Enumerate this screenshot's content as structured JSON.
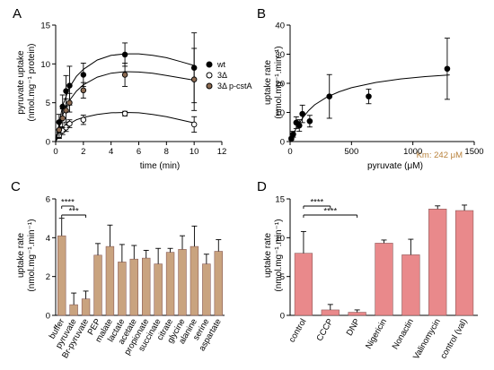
{
  "colors": {
    "black": "#000000",
    "brown": "#8c6b52",
    "tan": "#c9a37f",
    "salmon": "#e9898b",
    "red": "#d8343a",
    "grey": "#7f7f7f",
    "km_color": "#b8813a"
  },
  "chart_data": [
    {
      "panel": "A",
      "type": "scatter",
      "xlabel": "time (min)",
      "ylabel": "pyruvate uptake",
      "ylabel2": "(nmol.mg⁻¹ protein)",
      "xlim": [
        0,
        12
      ],
      "ylim": [
        0,
        15
      ],
      "xticks": [
        "0",
        "2",
        "4",
        "6",
        "8",
        "10",
        "12"
      ],
      "yticks": [
        "0",
        "5",
        "10",
        "15"
      ],
      "legend_position": "right",
      "series": [
        {
          "name": "wt",
          "marker": "filled-black",
          "x": [
            0.25,
            0.5,
            0.75,
            1,
            2,
            5,
            10
          ],
          "y": [
            2.5,
            4.5,
            6.5,
            7.2,
            8.6,
            11.2,
            9.5
          ],
          "err": [
            1.0,
            1.5,
            2.0,
            2.5,
            1.5,
            1.5,
            4.5
          ],
          "fit": [
            [
              0,
              0
            ],
            [
              0.5,
              4.6
            ],
            [
              1,
              7.0
            ],
            [
              1.5,
              8.4
            ],
            [
              2,
              9.3
            ],
            [
              3,
              10.5
            ],
            [
              4,
              11.1
            ],
            [
              5,
              11.3
            ],
            [
              6,
              11.3
            ],
            [
              7,
              11.1
            ],
            [
              8,
              10.8
            ],
            [
              9,
              10.3
            ],
            [
              10,
              9.8
            ]
          ]
        },
        {
          "name": "3Δ",
          "marker": "open",
          "x": [
            0.25,
            0.5,
            0.75,
            1,
            2,
            5,
            10
          ],
          "y": [
            0.8,
            1.4,
            1.8,
            2.3,
            2.8,
            3.6,
            2.2
          ],
          "err": [
            0.4,
            0.5,
            0.5,
            0.5,
            0.6,
            0.3,
            1.0
          ],
          "fit": [
            [
              0,
              0
            ],
            [
              0.5,
              1.5
            ],
            [
              1,
              2.3
            ],
            [
              1.5,
              2.8
            ],
            [
              2,
              3.1
            ],
            [
              3,
              3.5
            ],
            [
              4,
              3.7
            ],
            [
              5,
              3.75
            ],
            [
              6,
              3.7
            ],
            [
              7,
              3.5
            ],
            [
              8,
              3.2
            ],
            [
              9,
              2.8
            ],
            [
              10,
              2.4
            ]
          ]
        },
        {
          "name": "3Δ p-cstA",
          "marker": "filled-brown",
          "x": [
            0.25,
            0.5,
            0.75,
            1,
            2,
            5,
            10
          ],
          "y": [
            1.5,
            3.0,
            4.0,
            5.0,
            6.6,
            8.6,
            8.0
          ],
          "err": [
            1.0,
            1.2,
            1.5,
            1.2,
            1.0,
            1.5,
            4.0
          ],
          "fit": [
            [
              0,
              0
            ],
            [
              0.5,
              3.4
            ],
            [
              1,
              5.3
            ],
            [
              1.5,
              6.5
            ],
            [
              2,
              7.3
            ],
            [
              3,
              8.3
            ],
            [
              4,
              8.8
            ],
            [
              5,
              9.0
            ],
            [
              6,
              8.95
            ],
            [
              7,
              8.8
            ],
            [
              8,
              8.5
            ],
            [
              9,
              8.2
            ],
            [
              10,
              7.9
            ]
          ]
        }
      ]
    },
    {
      "panel": "B",
      "type": "scatter",
      "xlabel": "pyruvate (μM)",
      "ylabel": "uptake rate",
      "ylabel2": "(nmol.mg⁻¹.min⁻¹)",
      "xlim": [
        0,
        1500
      ],
      "ylim": [
        0,
        40
      ],
      "xticks": [
        "0",
        "500",
        "1000",
        "1500"
      ],
      "yticks": [
        "0",
        "10",
        "20",
        "30",
        "40"
      ],
      "annotation": "Km: 242 μM",
      "x": [
        10,
        25,
        50,
        75,
        100,
        160,
        320,
        640,
        1280
      ],
      "y": [
        1.0,
        2.5,
        6.5,
        5.5,
        9.5,
        7.0,
        15.5,
        15.5,
        25.0
      ],
      "err": [
        0.5,
        1.0,
        2.0,
        2.0,
        3.0,
        2.0,
        7.5,
        2.5,
        10.5
      ],
      "fit": [
        [
          0,
          0
        ],
        [
          20,
          2.1
        ],
        [
          50,
          4.6
        ],
        [
          100,
          8.0
        ],
        [
          150,
          10.6
        ],
        [
          200,
          12.6
        ],
        [
          300,
          15.3
        ],
        [
          400,
          17.1
        ],
        [
          500,
          18.5
        ],
        [
          700,
          20.3
        ],
        [
          900,
          21.5
        ],
        [
          1100,
          22.3
        ],
        [
          1300,
          22.9
        ]
      ]
    },
    {
      "panel": "C",
      "type": "bar",
      "ylabel": "uptake rate",
      "ylabel2": "(nmol.mg⁻¹.min⁻¹)",
      "ylim": [
        0,
        6
      ],
      "yticks": [
        "0",
        "2",
        "4",
        "6"
      ],
      "categories": [
        "buffer",
        "pyruvate",
        "Br-pyruvate",
        "PEP",
        "malate",
        "lactate",
        "acetate",
        "propionate",
        "succinate",
        "citrate",
        "glycine",
        "alanine",
        "serine",
        "aspartate"
      ],
      "values": [
        4.1,
        0.55,
        0.85,
        3.1,
        3.55,
        2.75,
        2.9,
        2.95,
        2.65,
        3.25,
        3.4,
        3.55,
        2.65,
        3.3
      ],
      "err": [
        0.9,
        0.6,
        0.4,
        0.6,
        1.1,
        0.9,
        0.7,
        0.4,
        0.8,
        0.2,
        0.7,
        1.05,
        0.5,
        0.6
      ],
      "significance": [
        {
          "from": 0,
          "to": 1,
          "label": "****"
        },
        {
          "from": 0,
          "to": 2,
          "label": "***"
        }
      ]
    },
    {
      "panel": "D",
      "type": "bar",
      "ylabel": "uptake rate",
      "ylabel2": "(nmol.mg⁻¹.min⁻¹)",
      "ylim": [
        0,
        15
      ],
      "yticks": [
        "0",
        "5",
        "10",
        "15"
      ],
      "categories": [
        "control",
        "CCCP",
        "DNP",
        "Nigericin",
        "Nonactin",
        "Valinomycin",
        "control (val)"
      ],
      "values": [
        8.0,
        0.7,
        0.4,
        9.3,
        7.8,
        13.7,
        13.5
      ],
      "err": [
        2.8,
        0.7,
        0.3,
        0.4,
        2.0,
        0.4,
        0.7
      ],
      "significance": [
        {
          "from": 0,
          "to": 1,
          "label": "****"
        },
        {
          "from": 0,
          "to": 2,
          "label": "****"
        }
      ]
    }
  ]
}
